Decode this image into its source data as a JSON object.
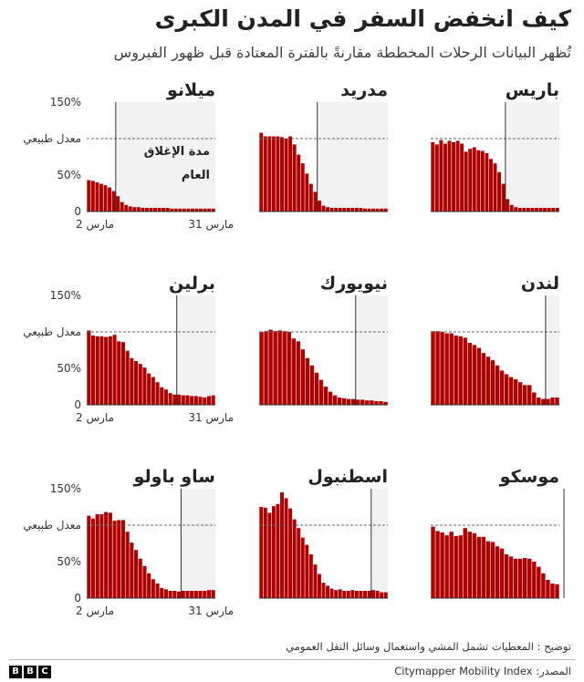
{
  "title": "كيف انخفض السفر في المدن الكبرى",
  "subtitle": "تُظهر البيانات الرحلات المخططة مقارنةً بالفترة المعتادة قبل ظهور الفيروس",
  "footnote": "توضيح : المعطيات تشمل المشي واستعمال وسائل النقل العمومي",
  "source": "المصدر: Citymapper Mobility Index",
  "logo": [
    "B",
    "B",
    "C"
  ],
  "colors": {
    "bar": "#b00000",
    "lockdown_shade": "#f2f2f2",
    "reference_line": "#666666",
    "axis": "#333333"
  },
  "chart_data": {
    "type": "bar",
    "layout": "small-multiples",
    "ylim": [
      0,
      150
    ],
    "y_ticks": [
      "150%",
      "50%",
      "0"
    ],
    "normal_label": "معدل طبيعي",
    "normal_value": 100,
    "x_tick_labels": [
      "2 مارس",
      "31 مارس"
    ],
    "lockdown_label": [
      "مدة الإغلاق",
      "العام"
    ],
    "cities": [
      {
        "name": "باريس",
        "lockdown_index": 18,
        "values": [
          95,
          92,
          98,
          93,
          97,
          95,
          97,
          93,
          82,
          86,
          88,
          84,
          83,
          80,
          72,
          66,
          54,
          38,
          17,
          9,
          6,
          5,
          5,
          5,
          5,
          5,
          5,
          5,
          5,
          5,
          5
        ]
      },
      {
        "name": "مدريد",
        "lockdown_index": 14,
        "values": [
          108,
          103,
          103,
          103,
          103,
          102,
          100,
          103,
          92,
          78,
          66,
          52,
          38,
          27,
          15,
          8,
          6,
          5,
          5,
          5,
          5,
          5,
          5,
          5,
          5,
          4,
          4,
          4,
          4,
          4,
          4
        ]
      },
      {
        "name": "ميلانو",
        "lockdown_index": 7,
        "values": [
          43,
          42,
          40,
          38,
          36,
          33,
          28,
          21,
          13,
          9,
          7,
          6,
          6,
          5,
          5,
          5,
          5,
          5,
          5,
          5,
          4,
          4,
          4,
          4,
          4,
          4,
          4,
          4,
          4,
          4,
          4
        ]
      },
      {
        "name": "لندن",
        "lockdown_index": 25,
        "values": [
          101,
          101,
          100,
          98,
          98,
          95,
          94,
          92,
          85,
          82,
          78,
          71,
          66,
          61,
          54,
          47,
          42,
          38,
          35,
          31,
          27,
          27,
          17,
          10,
          8,
          8,
          10,
          10
        ]
      },
      {
        "name": "نيويورك",
        "lockdown_index": 21,
        "values": [
          100,
          101,
          103,
          101,
          102,
          101,
          100,
          91,
          87,
          76,
          64,
          54,
          44,
          34,
          25,
          18,
          13,
          10,
          9,
          8,
          8,
          7,
          7,
          6,
          6,
          5,
          5,
          4
        ]
      },
      {
        "name": "برلين",
        "lockdown_index": 21,
        "values": [
          102,
          95,
          94,
          94,
          93,
          94,
          96,
          87,
          86,
          74,
          64,
          60,
          56,
          51,
          43,
          38,
          31,
          24,
          21,
          16,
          14,
          14,
          13,
          13,
          12,
          12,
          11,
          10,
          12,
          13
        ]
      },
      {
        "name": "موسكو",
        "lockdown_index": 29,
        "values": [
          98,
          92,
          90,
          86,
          91,
          85,
          86,
          96,
          91,
          89,
          84,
          84,
          78,
          77,
          71,
          68,
          60,
          57,
          54,
          54,
          55,
          54,
          50,
          43,
          34,
          25,
          20,
          19
        ]
      },
      {
        "name": "اسطنبول",
        "lockdown_index": 27,
        "values": [
          125,
          124,
          117,
          126,
          129,
          145,
          137,
          123,
          108,
          96,
          83,
          73,
          60,
          46,
          33,
          21,
          17,
          13,
          11,
          12,
          10,
          10,
          11,
          10,
          10,
          10,
          10,
          11,
          10,
          8,
          8
        ]
      },
      {
        "name": "ساو باولو",
        "lockdown_index": 22,
        "values": [
          113,
          109,
          115,
          115,
          118,
          117,
          106,
          107,
          107,
          91,
          76,
          66,
          54,
          44,
          34,
          26,
          20,
          14,
          12,
          10,
          10,
          9,
          10,
          10,
          10,
          10,
          10,
          10,
          11,
          11
        ]
      }
    ]
  }
}
